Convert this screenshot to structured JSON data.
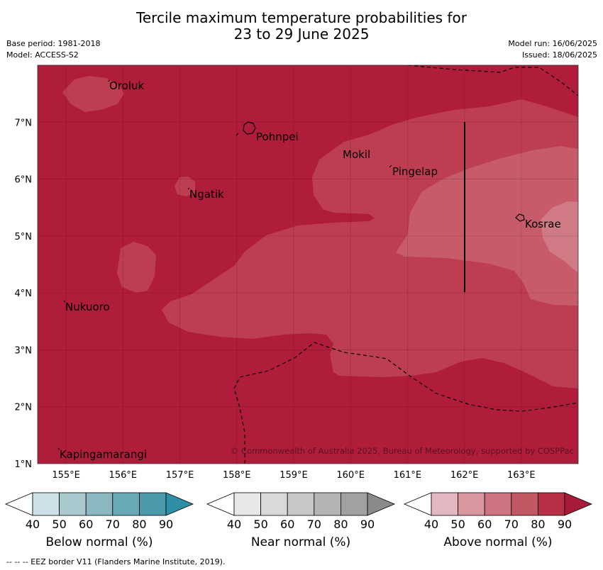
{
  "header": {
    "title_line1": "Tercile maximum temperature probabilities for",
    "title_line2": "23 to 29 June 2025",
    "base_period": "Base period: 1981-2018",
    "model": "Model: ACCESS-S2",
    "model_run": "Model run: 16/06/2025",
    "issued": "Issued: 18/06/2025"
  },
  "map": {
    "lon_ticks": [
      "155°E",
      "156°E",
      "157°E",
      "158°E",
      "159°E",
      "160°E",
      "161°E",
      "162°E",
      "163°E"
    ],
    "lat_ticks": [
      "1°N",
      "2°N",
      "3°N",
      "4°N",
      "5°N",
      "6°N",
      "7°N"
    ],
    "places": [
      "Oroluk",
      "Pohnpei",
      "Mokil",
      "Pingelap",
      "Ngatik",
      "Kosrae",
      "Nukuoro",
      "Kapingamarangi"
    ],
    "copyright": "© Commonwealth of Australia 2025, Bureau of Meteorology, supported by COSPPac",
    "colors": {
      "above_90": "#b01d3a",
      "above_80": "#bd3d52",
      "above_70": "#c85b69",
      "above_60": "#d07a86"
    }
  },
  "legend": {
    "ticks": [
      "40",
      "50",
      "60",
      "70",
      "80",
      "90"
    ],
    "below_title": "Below normal (%)",
    "near_title": "Near normal (%)",
    "above_title": "Above normal (%)",
    "below_colors": [
      "#ffffff",
      "#cce2e8",
      "#a9c9cf",
      "#8ab7c0",
      "#69a9b7",
      "#4b9aac",
      "#2f8fa5"
    ],
    "near_colors": [
      "#ffffff",
      "#e8e8e8",
      "#d9d9d9",
      "#c8c8c8",
      "#b4b4b4",
      "#a1a1a1",
      "#8a8a8a"
    ],
    "above_colors": [
      "#ffffff",
      "#e3b8c0",
      "#d8969f",
      "#cc7580",
      "#c25764",
      "#b72f47",
      "#a8193a"
    ]
  },
  "footnote": "--  --  -- EEZ border V11 (Flanders Marine Institute, 2019)."
}
